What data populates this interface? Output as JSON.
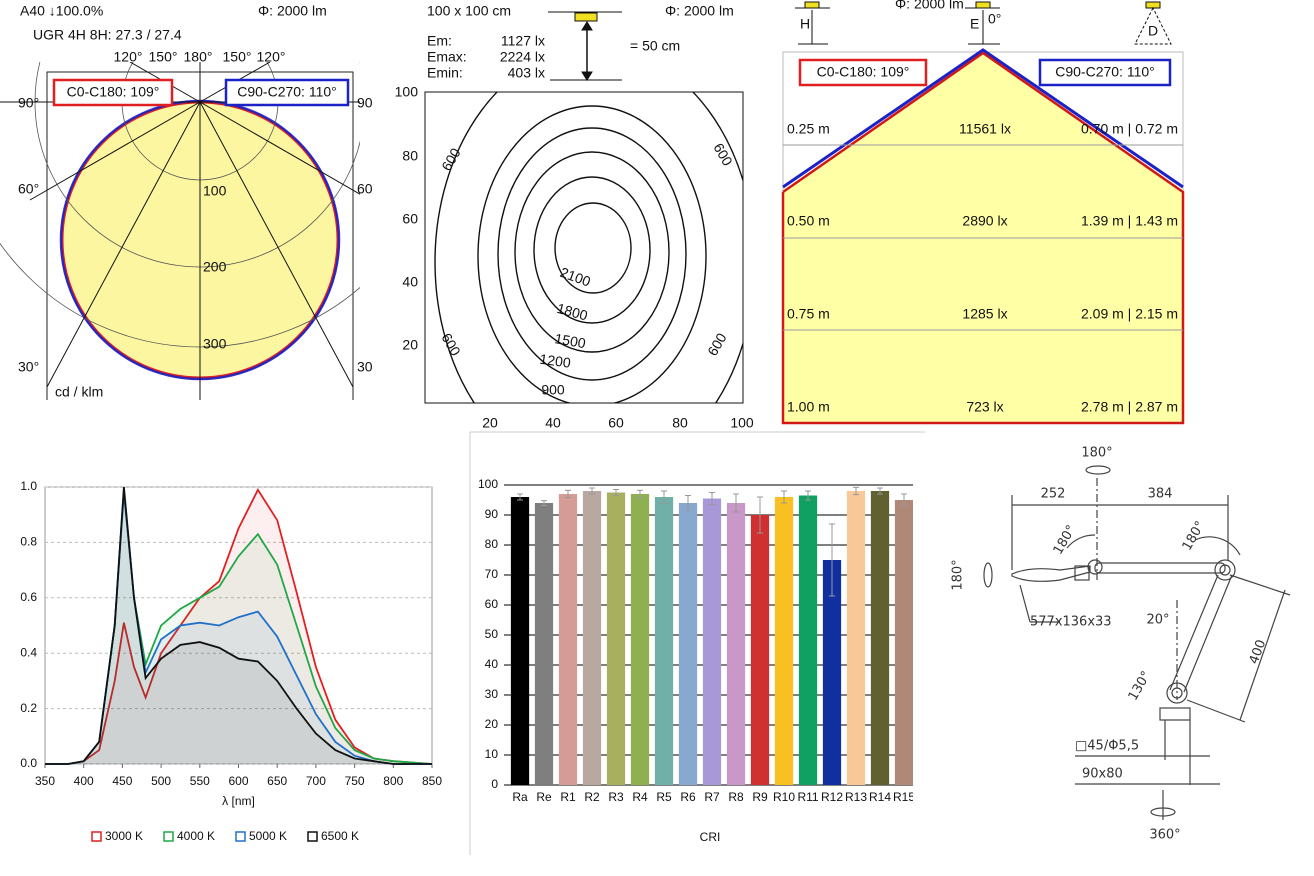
{
  "polar": {
    "title": "A40 ↓100.0%",
    "flux": "Φ: 2000 lm",
    "ugr": "UGR 4H 8H: 27.3 / 27.4",
    "top_angles": [
      "120°",
      "150°",
      "180°",
      "150°",
      "120°"
    ],
    "left_angles": [
      "90°",
      "60°",
      "30°"
    ],
    "right_angles": [
      "90",
      "60",
      "30"
    ],
    "radial_labels": [
      "100",
      "200",
      "300"
    ],
    "unit": "cd / klm",
    "legend": [
      "C0-C180: 109°",
      "C90-C270: 110°"
    ]
  },
  "isolux": {
    "area": "100 x 100 cm",
    "flux": "Φ: 2000 lm",
    "stats": [
      [
        "Em:",
        "1127 lx"
      ],
      [
        "Emax:",
        "2224 lx"
      ],
      [
        "Emin:",
        "403 lx"
      ]
    ],
    "height": "= 50 cm",
    "yticks": [
      "100",
      "80",
      "60",
      "40",
      "20"
    ],
    "xticks": [
      "20",
      "40",
      "60",
      "80",
      "100"
    ],
    "contours": [
      "600",
      "600",
      "600",
      "600",
      "2100",
      "1800",
      "1500",
      "1200",
      "900"
    ]
  },
  "cone": {
    "icons": [
      "H",
      "E",
      "0°",
      "D"
    ],
    "flux": "Φ: 2000 lm",
    "legend": [
      "C0-C180: 109°",
      "C90-C270: 110°"
    ],
    "rows": [
      [
        "0.25 m",
        "11561 lx",
        "0.70 m | 0.72 m"
      ],
      [
        "0.50 m",
        "2890 lx",
        "1.39 m | 1.43 m"
      ],
      [
        "0.75 m",
        "1285 lx",
        "2.09 m | 2.15 m"
      ],
      [
        "1.00 m",
        "723 lx",
        "2.78 m | 2.87 m"
      ]
    ]
  },
  "drawing": {
    "labels": [
      "180°",
      "252",
      "384",
      "180°",
      "180°",
      "180°",
      "577x136x33",
      "20°",
      "130°",
      "400",
      "□45/Φ5,5",
      "90x80",
      "360°"
    ]
  },
  "chart_data": [
    {
      "type": "line",
      "xlabel": "λ [nm]",
      "x": [
        350,
        380,
        400,
        420,
        440,
        452,
        465,
        480,
        500,
        525,
        550,
        575,
        600,
        625,
        650,
        675,
        700,
        725,
        750,
        775,
        800,
        850
      ],
      "xlim": [
        350,
        850
      ],
      "xticks": [
        350,
        400,
        450,
        500,
        550,
        600,
        650,
        700,
        750,
        800,
        850
      ],
      "ylim": [
        0,
        1
      ],
      "yticks": [
        {
          "value": 0,
          "label": "0.0"
        },
        0.2,
        0.4,
        0.6,
        0.8,
        {
          "value": 1,
          "label": "1.0"
        }
      ],
      "grid": true,
      "legend": "bottom",
      "series": [
        {
          "name": "3000 K",
          "color": "#e02020",
          "values": [
            0,
            0,
            0.01,
            0.05,
            0.3,
            0.51,
            0.35,
            0.24,
            0.4,
            0.5,
            0.6,
            0.66,
            0.85,
            0.99,
            0.88,
            0.62,
            0.35,
            0.16,
            0.06,
            0.02,
            0.01,
            0
          ]
        },
        {
          "name": "4000 K",
          "color": "#20a848",
          "values": [
            0,
            0,
            0.01,
            0.08,
            0.5,
            0.99,
            0.6,
            0.36,
            0.5,
            0.56,
            0.6,
            0.64,
            0.75,
            0.83,
            0.72,
            0.5,
            0.28,
            0.13,
            0.05,
            0.02,
            0.01,
            0
          ]
        },
        {
          "name": "5000 K",
          "color": "#2070c8",
          "values": [
            0,
            0,
            0.01,
            0.08,
            0.5,
            0.98,
            0.6,
            0.33,
            0.45,
            0.5,
            0.51,
            0.5,
            0.53,
            0.55,
            0.46,
            0.32,
            0.18,
            0.08,
            0.03,
            0.01,
            0,
            0
          ]
        },
        {
          "name": "6500 K",
          "color": "#111111",
          "values": [
            0,
            0,
            0.01,
            0.08,
            0.5,
            1,
            0.6,
            0.31,
            0.38,
            0.43,
            0.44,
            0.42,
            0.38,
            0.37,
            0.3,
            0.2,
            0.11,
            0.05,
            0.02,
            0.01,
            0,
            0
          ]
        }
      ]
    },
    {
      "type": "bar",
      "xlabel": "CRI",
      "categories": [
        "Ra",
        "Re",
        "R1",
        "R2",
        "R3",
        "R4",
        "R5",
        "R6",
        "R7",
        "R8",
        "R9",
        "R10",
        "R11",
        "R12",
        "R13",
        "R14",
        "R15"
      ],
      "values": [
        96,
        94,
        97,
        98,
        97.5,
        97,
        96,
        94,
        95.5,
        94,
        90,
        96,
        96.5,
        75,
        98,
        98,
        95
      ],
      "errors": [
        1,
        0.8,
        1.2,
        1,
        1,
        1.2,
        2,
        2.5,
        2,
        3,
        6,
        2,
        1.5,
        12,
        1.2,
        1,
        2
      ],
      "colors": [
        "#000000",
        "#7f7f7f",
        "#d49c94",
        "#b8a8a0",
        "#a8b060",
        "#8eb050",
        "#70b0a8",
        "#88a8d0",
        "#a898d8",
        "#c898c8",
        "#d03030",
        "#f8c020",
        "#10a060",
        "#1030a0",
        "#f8c898",
        "#606030",
        "#b08878"
      ],
      "ylim": [
        0,
        100
      ],
      "yticks": [
        0,
        10,
        20,
        30,
        40,
        50,
        60,
        70,
        80,
        90,
        100
      ],
      "grid": true
    }
  ]
}
